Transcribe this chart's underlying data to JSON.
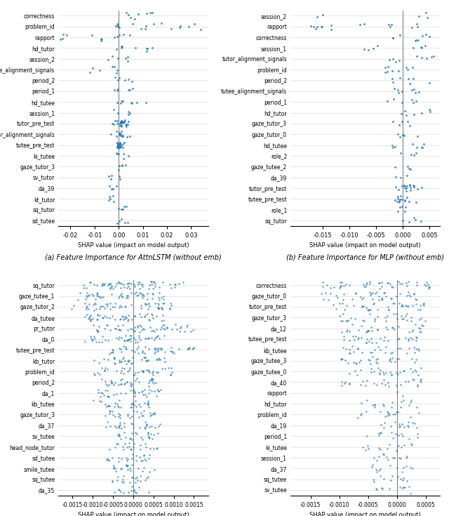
{
  "panel_a": {
    "title": "(a) Feature Importance for AttnLSTM (without emb)",
    "features": [
      "correctness",
      "problem_id",
      "rapport",
      "hd_tutor",
      "session_2",
      "tutee_alignment_signals",
      "period_2",
      "period_1",
      "hd_tutee",
      "session_1",
      "tutor_pre_test",
      "tutor_alignment_signals",
      "tutee_pre_test",
      "ki_tutee",
      "gaze_tutor_3",
      "sv_tutor",
      "da_39",
      "kt_tutor",
      "sq_tutor",
      "sd_tutee"
    ],
    "xlim": [
      -0.025,
      0.037
    ],
    "xticks": [
      -0.02,
      -0.01,
      0.0,
      0.01,
      0.02,
      0.03
    ],
    "xtick_labels": [
      "-0.02",
      "-0.01",
      "0.00",
      "0.01",
      "0.02",
      "0.03"
    ],
    "xlabel": "SHAP value (impact on model output)"
  },
  "panel_b": {
    "title": "(b) Feature Importance for MLP (without emb)",
    "features": [
      "session_2",
      "rapport",
      "correctness",
      "session_1",
      "tutor_alignment_signals",
      "problem_id",
      "period_2",
      "tutee_alignment_signals",
      "period_1",
      "hd_tutor",
      "gaze_tutor_3",
      "gaze_tutor_0",
      "hd_tutee",
      "role_2",
      "gaze_tutee_2",
      "da_39",
      "tutor_pre_test",
      "tutee_pre_test",
      "role_1",
      "sq_tutor"
    ],
    "xlim": [
      -0.021,
      0.007
    ],
    "xticks": [
      -0.015,
      -0.01,
      -0.005,
      0.0,
      0.005
    ],
    "xtick_labels": [
      "-0.015",
      "-0.010",
      "-0.005",
      "0.000",
      "0.005"
    ],
    "xlabel": "SHAP value (impact on model output)"
  },
  "panel_c": {
    "title": "(c) Feature Importance for XGBoost",
    "features": [
      "sq_tutor",
      "gaze_tutee_1",
      "gaze_tutor_2",
      "da_tutee",
      "pr_tutor",
      "da_0",
      "tutee_pre_test",
      "kb_tutor",
      "problem_id",
      "period_2",
      "da_1",
      "kb_tutee",
      "gaze_tutor_3",
      "da_37",
      "sv_tutee",
      "head_node_tutor",
      "sd_tutee",
      "smile_tutee",
      "sq_tutee",
      "da_35"
    ],
    "xlim": [
      -0.00185,
      0.00185
    ],
    "xticks": [
      -0.0015,
      -0.001,
      -0.0005,
      0.0,
      0.0005,
      0.001,
      0.0015
    ],
    "xtick_labels": [
      "-0.0015",
      "-0.0010",
      "-0.0005",
      "0.0000",
      "0.0005",
      "0.0010",
      "0.0015"
    ],
    "xlabel": "SHAP value (impact on model output)"
  },
  "panel_d": {
    "title": "(d) Feature Importance for LightGBM",
    "features": [
      "correctness",
      "gaze_tutor_0",
      "tutor_pre_test",
      "gaze_tutor_3",
      "da_12",
      "tutee_pre_test",
      "kb_tutee",
      "gaze_tutee_3",
      "gaze_tutee_0",
      "da_40",
      "rapport",
      "hd_tutor",
      "problem_id",
      "da_19",
      "period_1",
      "ki_tutee",
      "session_1",
      "da_37",
      "sq_tutee",
      "sv_tutee"
    ],
    "xlim": [
      -0.00185,
      0.00075
    ],
    "xticks": [
      -0.0015,
      -0.001,
      -0.0005,
      0.0,
      0.0005
    ],
    "xtick_labels": [
      "-0.0015",
      "-0.0010",
      "-0.0005",
      "0.0000",
      "0.0005"
    ],
    "xlabel": "SHAP value (impact on model output)"
  },
  "color": "#2077b4",
  "background": "#ffffff"
}
